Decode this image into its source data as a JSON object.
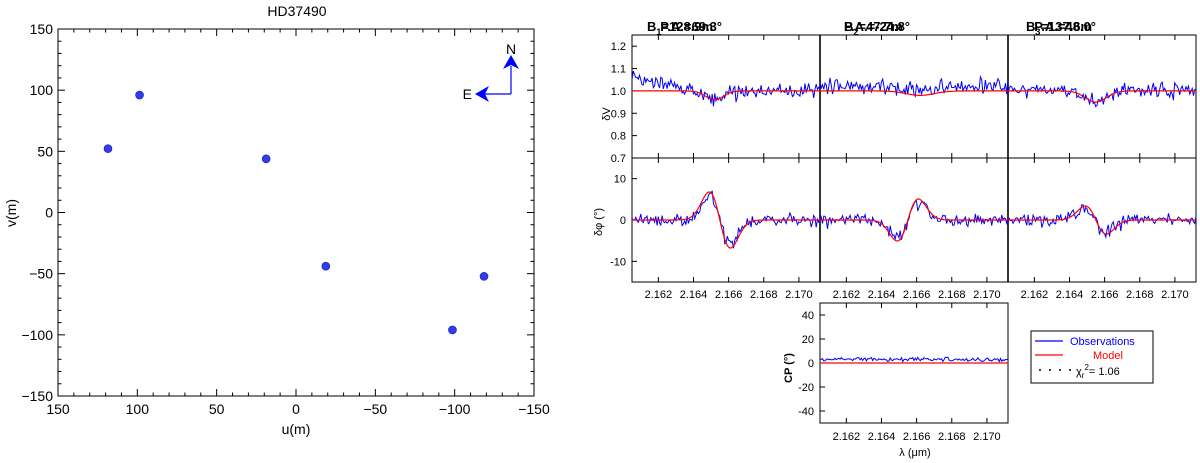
{
  "colors": {
    "obs": "#0000ff",
    "model": "#ff0000",
    "points": "#2f3cf0",
    "axis": "#000000"
  },
  "chart_data": [
    {
      "type": "scatter",
      "title": "HD37490",
      "xlabel": "u(m)",
      "ylabel": "v(m)",
      "xlim": [
        150,
        -150
      ],
      "ylim": [
        -150,
        150
      ],
      "xticks": [
        150,
        100,
        50,
        0,
        -50,
        -100,
        -150
      ],
      "yticks": [
        -150,
        -100,
        -50,
        0,
        50,
        100,
        150
      ],
      "x": [
        118.5,
        98.6,
        18.8,
        -18.8,
        -98.6,
        -118.5
      ],
      "y": [
        52.2,
        96.0,
        43.9,
        -43.9,
        -96.0,
        -52.2
      ],
      "compass": {
        "north": "N",
        "east": "E"
      }
    },
    {
      "type": "line",
      "panels": [
        {
          "baseline": "B1=128.9m",
          "baseline_sym": "B",
          "baseline_sub": "1",
          "baseline_val": "=128.9m",
          "pa": "P.A.=69.3°"
        },
        {
          "baseline": "B2=47.7m",
          "baseline_sym": "B",
          "baseline_sub": "2",
          "baseline_val": "=47.7m",
          "pa": "P.A.=-24.8°"
        },
        {
          "baseline": "B3=137.6m",
          "baseline_sym": "B",
          "baseline_sub": "3",
          "baseline_val": "=137.6m",
          "pa": "P.A.=48.0°"
        }
      ],
      "xlim": [
        2.1605,
        2.1712
      ],
      "xticks": [
        "2.162",
        "2.164",
        "2.166",
        "2.168",
        "2.170"
      ],
      "xlabel": "λ (μm)",
      "dv": {
        "ylabel": "δV",
        "ylim": [
          0.7,
          1.25
        ],
        "yticks": [
          "0.7",
          "0.8",
          "0.9",
          "1.0",
          "1.1",
          "1.2"
        ],
        "model_dip": [
          {
            "center": 2.1652,
            "depth": 0.04,
            "width": 0.0005
          },
          {
            "center": 2.1662,
            "depth": 0.02,
            "width": 0.0008
          },
          {
            "center": 2.1655,
            "depth": 0.05,
            "width": 0.0006
          }
        ]
      },
      "dphi": {
        "ylabel": "δφ (°)",
        "ylim": [
          -15,
          15
        ],
        "yticks": [
          "-10",
          "0",
          "10"
        ],
        "model_amp": [
          8,
          -6,
          4
        ]
      },
      "cp": {
        "ylabel": "CP (°)",
        "ylim": [
          -50,
          50
        ],
        "yticks": [
          "-40",
          "-20",
          "0",
          "20",
          "40"
        ]
      },
      "legend": {
        "observations": "Observations",
        "model": "Model",
        "chi_label": "χ",
        "chi_sub": "r",
        "chi_sup": "2",
        "chi_value": "= 1.06"
      }
    }
  ]
}
